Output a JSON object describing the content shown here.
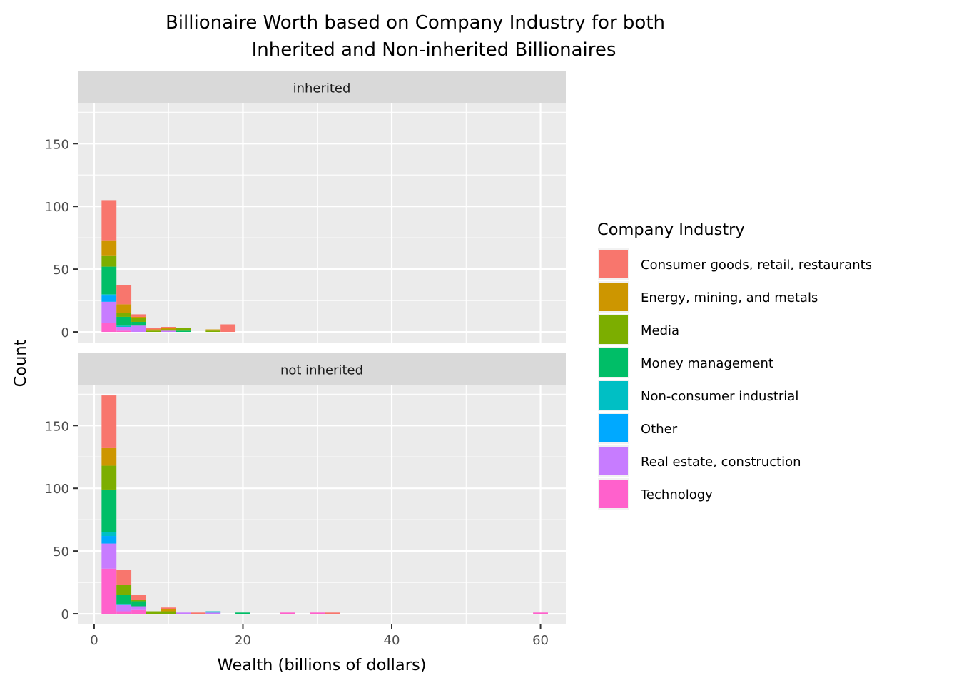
{
  "chart_data": {
    "type": "bar",
    "subtype": "stacked histogram, faceted",
    "title_line1": "Billionaire Worth based on Company Industry for both",
    "title_line2": "Inherited and Non-inherited Billionaires",
    "xlabel": "Wealth (billions of dollars)",
    "ylabel": "Count",
    "xlim": [
      -2.2,
      63.4
    ],
    "ylim": [
      -8.5,
      182
    ],
    "x_ticks": [
      0,
      20,
      40,
      60
    ],
    "y_ticks": [
      0,
      50,
      100,
      150
    ],
    "bin_width": 2,
    "legend": {
      "title": "Company Industry",
      "position": "right",
      "entries": [
        {
          "name": "Consumer goods, retail, restaurants",
          "color": "#F8766D"
        },
        {
          "name": "Energy, mining, and metals",
          "color": "#CD9600"
        },
        {
          "name": "Media",
          "color": "#7CAE00"
        },
        {
          "name": "Money management",
          "color": "#00BE67"
        },
        {
          "name": "Non-consumer industrial",
          "color": "#00BFC4"
        },
        {
          "name": "Other",
          "color": "#00A9FF"
        },
        {
          "name": "Real estate, construction",
          "color": "#C77CFF"
        },
        {
          "name": "Technology",
          "color": "#FF61CC"
        }
      ]
    },
    "panels": [
      {
        "label": "inherited",
        "bins": [
          {
            "x0": 1,
            "x1": 3,
            "counts": {
              "Technology": 7,
              "Real estate, construction": 17,
              "Other": 5,
              "Non-consumer industrial": 1,
              "Money management": 22,
              "Media": 9,
              "Energy, mining, and metals": 12,
              "Consumer goods, retail, restaurants": 32
            }
          },
          {
            "x0": 3,
            "x1": 5,
            "counts": {
              "Technology": 1,
              "Real estate, construction": 3,
              "Non-consumer industrial": 1,
              "Money management": 7,
              "Media": 3,
              "Energy, mining, and metals": 7,
              "Consumer goods, retail, restaurants": 15
            }
          },
          {
            "x0": 5,
            "x1": 7,
            "counts": {
              "Real estate, construction": 5,
              "Money management": 3,
              "Media": 3,
              "Energy, mining, and metals": 1,
              "Consumer goods, retail, restaurants": 2
            }
          },
          {
            "x0": 7,
            "x1": 9,
            "counts": {
              "Media": 1,
              "Energy, mining, and metals": 1,
              "Consumer goods, retail, restaurants": 1
            }
          },
          {
            "x0": 9,
            "x1": 11,
            "counts": {
              "Real estate, construction": 1,
              "Media": 1,
              "Energy, mining, and metals": 1,
              "Consumer goods, retail, restaurants": 1
            }
          },
          {
            "x0": 11,
            "x1": 13,
            "counts": {
              "Media": 2,
              "Money management": 1
            }
          },
          {
            "x0": 15,
            "x1": 17,
            "counts": {
              "Media": 1,
              "Energy, mining, and metals": 1
            }
          },
          {
            "x0": 17,
            "x1": 19,
            "counts": {
              "Consumer goods, retail, restaurants": 6
            }
          }
        ]
      },
      {
        "label": "not inherited",
        "bins": [
          {
            "x0": 1,
            "x1": 3,
            "counts": {
              "Technology": 36,
              "Real estate, construction": 20,
              "Other": 6,
              "Non-consumer industrial": 3,
              "Money management": 34,
              "Media": 19,
              "Energy, mining, and metals": 14,
              "Consumer goods, retail, restaurants": 42
            }
          },
          {
            "x0": 3,
            "x1": 5,
            "counts": {
              "Technology": 2,
              "Real estate, construction": 5,
              "Non-consumer industrial": 1,
              "Money management": 7,
              "Media": 8,
              "Consumer goods, retail, restaurants": 12
            }
          },
          {
            "x0": 5,
            "x1": 7,
            "counts": {
              "Technology": 3,
              "Real estate, construction": 3,
              "Money management": 4,
              "Media": 1,
              "Consumer goods, retail, restaurants": 4
            }
          },
          {
            "x0": 7,
            "x1": 9,
            "counts": {
              "Media": 2
            }
          },
          {
            "x0": 9,
            "x1": 11,
            "counts": {
              "Media": 2,
              "Energy, mining, and metals": 2,
              "Consumer goods, retail, restaurants": 1
            }
          },
          {
            "x0": 11,
            "x1": 13,
            "counts": {
              "Real estate, construction": 1
            }
          },
          {
            "x0": 13,
            "x1": 15,
            "counts": {
              "Consumer goods, retail, restaurants": 1
            }
          },
          {
            "x0": 15,
            "x1": 17,
            "counts": {
              "Real estate, construction": 1,
              "Non-consumer industrial": 1
            }
          },
          {
            "x0": 19,
            "x1": 21,
            "counts": {
              "Money management": 1
            }
          },
          {
            "x0": 25,
            "x1": 27,
            "counts": {
              "Technology": 1
            }
          },
          {
            "x0": 29,
            "x1": 31,
            "counts": {
              "Technology": 1
            }
          },
          {
            "x0": 31,
            "x1": 33,
            "counts": {
              "Consumer goods, retail, restaurants": 1
            }
          },
          {
            "x0": 59,
            "x1": 61,
            "counts": {
              "Technology": 1
            }
          }
        ]
      }
    ]
  }
}
